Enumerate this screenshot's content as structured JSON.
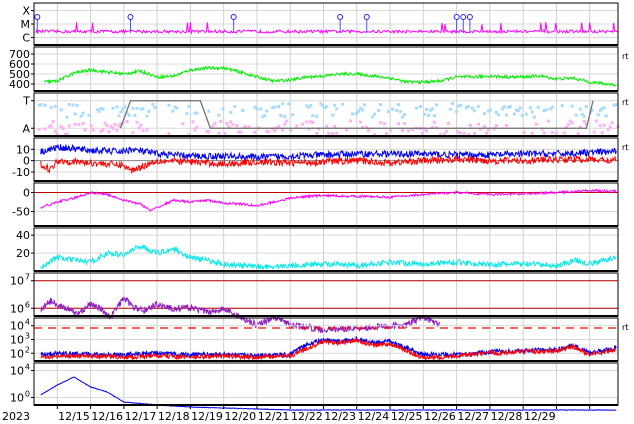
{
  "chart_data": {
    "type": "line",
    "start_year": "2023",
    "x_ticks": [
      "12/15",
      "12/16",
      "12/17",
      "12/18",
      "12/19",
      "12/20",
      "12/21",
      "12/22",
      "12/23",
      "12/24",
      "12/25",
      "12/26",
      "12/27",
      "12/28",
      "12/29"
    ],
    "grid": true,
    "colors": {
      "magenta": "#ff00ff",
      "green": "#00ee00",
      "lightblue": "#a8dcff",
      "pink": "#ffb0f0",
      "blue": "#0000ee",
      "red": "#ff0000",
      "cyan": "#00e8e8",
      "purple": "#9020c0",
      "gray": "#707070",
      "darkred": "#c00000"
    },
    "panels": [
      {
        "id": "flare",
        "y_tick_labels": [
          "X",
          "M",
          "C"
        ],
        "right_label": "",
        "series": [
          {
            "color": "magenta",
            "level": 0.2,
            "noise": 0.05,
            "seed": 1
          },
          {
            "color": "blue_markers",
            "marker_x": [
              12.4,
              15.2,
              18.3,
              21.5,
              22.3,
              25.0,
              25.2,
              25.4
            ]
          }
        ]
      },
      {
        "id": "wind_speed",
        "y_tick_labels": [
          "700",
          "600",
          "500",
          "400"
        ],
        "y_ticks": [
          700,
          600,
          500,
          400
        ],
        "ylim": [
          330,
          770
        ],
        "right_label": "rt",
        "series": [
          {
            "color": "green",
            "x": [
              12.6,
              13.0,
              13.5,
              14.0,
              14.5,
              15.0,
              15.5,
              16.0,
              16.5,
              17.0,
              17.5,
              18.0,
              18.5,
              19.0,
              19.5,
              20.0,
              20.5,
              21.0,
              21.5,
              22.0,
              22.5,
              23.0,
              23.5,
              24.0,
              24.5,
              25.0,
              25.5,
              26.0,
              26.5,
              27.0,
              27.5,
              28.0,
              28.5,
              29.0,
              29.5,
              29.8
            ],
            "y": [
              420,
              430,
              510,
              540,
              520,
              500,
              530,
              470,
              480,
              540,
              560,
              560,
              520,
              470,
              430,
              440,
              470,
              480,
              500,
              500,
              480,
              460,
              420,
              420,
              430,
              470,
              470,
              480,
              470,
              470,
              480,
              450,
              460,
              420,
              400,
              390
            ]
          }
        ]
      },
      {
        "id": "imf_sector",
        "y_tick_labels": [
          "T",
          "A"
        ],
        "right_label": "rt",
        "series": [
          {
            "color": "lightblue",
            "kind": "toward"
          },
          {
            "color": "pink",
            "kind": "away"
          },
          {
            "color": "gray",
            "kind": "sector",
            "x": [
              14.9,
              15.2,
              17.3,
              17.6,
              28.9,
              29.1
            ],
            "y": [
              "A",
              "T",
              "T",
              "A",
              "A",
              "T"
            ]
          }
        ]
      },
      {
        "id": "bz_bt",
        "y_tick_labels": [
          "10",
          "0",
          "-10"
        ],
        "y_ticks": [
          10,
          0,
          -10
        ],
        "ylim": [
          -18,
          20
        ],
        "right_label": "rt",
        "series": [
          {
            "color": "blue",
            "x": [
              12.5,
              12.8,
              13.0,
              14.0,
              15.0,
              15.2,
              16.0,
              17.0,
              18.0,
              19.0,
              20.0,
              21.0,
              22.0,
              23.0,
              24.0,
              25.0,
              26.0,
              27.0,
              28.0,
              29.0,
              29.8
            ],
            "y": [
              8,
              10,
              12,
              9,
              8,
              10,
              6,
              4,
              4,
              3,
              4,
              5,
              6,
              6,
              6,
              5,
              5,
              6,
              6,
              7,
              8
            ]
          },
          {
            "color": "red",
            "x": [
              12.5,
              12.8,
              13.0,
              14.0,
              15.0,
              15.2,
              16.0,
              17.0,
              18.0,
              19.0,
              20.0,
              21.0,
              22.0,
              23.0,
              24.0,
              25.0,
              26.0,
              27.0,
              28.0,
              29.0,
              29.8
            ],
            "y": [
              -3,
              -8,
              0,
              -2,
              -4,
              -9,
              0,
              -1,
              -3,
              -1,
              -2,
              -1,
              0,
              -2,
              0,
              1,
              0,
              0,
              1,
              1,
              0
            ]
          }
        ]
      },
      {
        "id": "dst",
        "y_tick_labels": [
          "0",
          "-50"
        ],
        "y_ticks": [
          0,
          -50
        ],
        "ylim": [
          -88,
          25
        ],
        "right_label": "",
        "series": [
          {
            "color": "magenta",
            "x": [
              12.5,
              13.0,
              13.5,
              14.0,
              14.5,
              15.0,
              15.5,
              15.8,
              16.0,
              16.5,
              17.0,
              17.5,
              18.0,
              18.5,
              19.0,
              19.5,
              20.0,
              20.5,
              21.0,
              22.0,
              23.0,
              24.0,
              25.0,
              26.0,
              27.0,
              28.0,
              29.0,
              29.8
            ],
            "y": [
              -40,
              -25,
              -15,
              0,
              -5,
              -20,
              -30,
              -48,
              -40,
              -20,
              -25,
              -20,
              -28,
              -30,
              -35,
              -25,
              -15,
              -10,
              -8,
              -10,
              -12,
              -5,
              0,
              -5,
              -3,
              0,
              5,
              3
            ]
          }
        ]
      },
      {
        "id": "kp",
        "y_tick_labels": [
          "40",
          "20"
        ],
        "y_ticks": [
          40,
          20
        ],
        "ylim": [
          0,
          48
        ],
        "right_label": "",
        "series": [
          {
            "color": "cyan",
            "x": [
              12.5,
              13.0,
              13.5,
              14.0,
              14.5,
              15.0,
              15.5,
              16.0,
              16.5,
              17.0,
              17.5,
              18.0,
              18.5,
              19.0,
              19.5,
              20.0,
              21.0,
              22.0,
              23.0,
              24.0,
              25.0,
              26.0,
              27.0,
              28.0,
              28.6,
              29.0,
              29.8
            ],
            "y": [
              5,
              15,
              12,
              10,
              20,
              18,
              28,
              20,
              25,
              15,
              12,
              8,
              6,
              5,
              5,
              6,
              8,
              6,
              10,
              8,
              10,
              7,
              8,
              6,
              12,
              8,
              15
            ]
          }
        ]
      },
      {
        "id": "xray",
        "y_tick_labels": [
          "10",
          "10"
        ],
        "y_tick_exps": [
          "7",
          "6"
        ],
        "right_label": "",
        "ref_lines": [
          "darkred",
          "darkred"
        ],
        "series": [
          {
            "color": "purple",
            "x": [
              12.5,
              12.8,
              13.0,
              13.3,
              13.6,
              14.0,
              14.3,
              14.6,
              15.0,
              15.3,
              15.6,
              16.0,
              16.5,
              17.0,
              17.5,
              18.0,
              18.5,
              19.0,
              19.5,
              20.0,
              21.0,
              23.5,
              24.0,
              24.5
            ],
            "y": [
              5.5,
              6.0,
              5.8,
              5.5,
              5.2,
              5.8,
              5.5,
              5.0,
              6.2,
              5.6,
              5.4,
              5.8,
              5.5,
              5.6,
              5.3,
              5.5,
              5.0,
              4.5,
              5.0,
              4.5,
              4.2,
              4.5,
              5.0,
              4.5
            ]
          }
        ]
      },
      {
        "id": "particles",
        "y_tick_labels": [
          "10",
          "10",
          "10"
        ],
        "y_tick_exps": [
          "4",
          "3",
          "2"
        ],
        "right_label": "rt",
        "series": [
          {
            "color": "blue",
            "x": [
              12.5,
              13.0,
              14.0,
              15.0,
              16.0,
              17.0,
              18.0,
              19.0,
              20.0,
              20.5,
              21.0,
              21.5,
              22.0,
              22.5,
              23.0,
              23.5,
              24.0,
              25.0,
              26.0,
              27.0,
              28.0,
              28.5,
              29.0,
              29.8
            ],
            "y": [
              1.8,
              1.9,
              1.8,
              1.8,
              1.9,
              1.8,
              1.8,
              1.7,
              1.8,
              2.6,
              2.9,
              2.8,
              3.0,
              2.7,
              2.8,
              2.3,
              1.8,
              1.8,
              2.0,
              2.1,
              2.2,
              2.5,
              1.9,
              2.3
            ]
          },
          {
            "color": "red",
            "x": [
              12.5,
              13.0,
              14.0,
              15.0,
              16.0,
              17.0,
              18.0,
              19.0,
              20.0,
              20.5,
              21.0,
              21.5,
              22.0,
              22.5,
              23.0,
              23.5,
              24.0,
              25.0,
              26.0,
              27.0,
              28.0,
              28.5,
              29.0,
              29.8
            ],
            "y": [
              1.6,
              1.7,
              1.7,
              1.6,
              1.7,
              1.6,
              1.7,
              1.6,
              1.7,
              2.3,
              2.8,
              2.7,
              2.9,
              2.5,
              2.6,
              2.1,
              1.5,
              1.7,
              1.9,
              2.0,
              2.1,
              2.4,
              1.8,
              2.2
            ]
          }
        ]
      },
      {
        "id": "electron",
        "y_tick_labels": [
          "10",
          "10"
        ],
        "y_tick_exps": [
          "4",
          "0"
        ],
        "right_label": "",
        "series": [
          {
            "color": "blue",
            "x": [
              12.5,
              13.0,
              13.5,
              14.0,
              14.5,
              15.0,
              16.0,
              17.0,
              18.0,
              19.0,
              20.0,
              22.0,
              24.0,
              26.0,
              28.0,
              29.8
            ],
            "y": [
              0.2,
              1.2,
              2.0,
              1.0,
              0.5,
              -0.5,
              -0.8,
              -1.0,
              -1.1,
              -1.2,
              -1.3,
              -1.3,
              -1.3,
              -1.3,
              -1.3,
              -1.3
            ]
          }
        ]
      }
    ]
  }
}
